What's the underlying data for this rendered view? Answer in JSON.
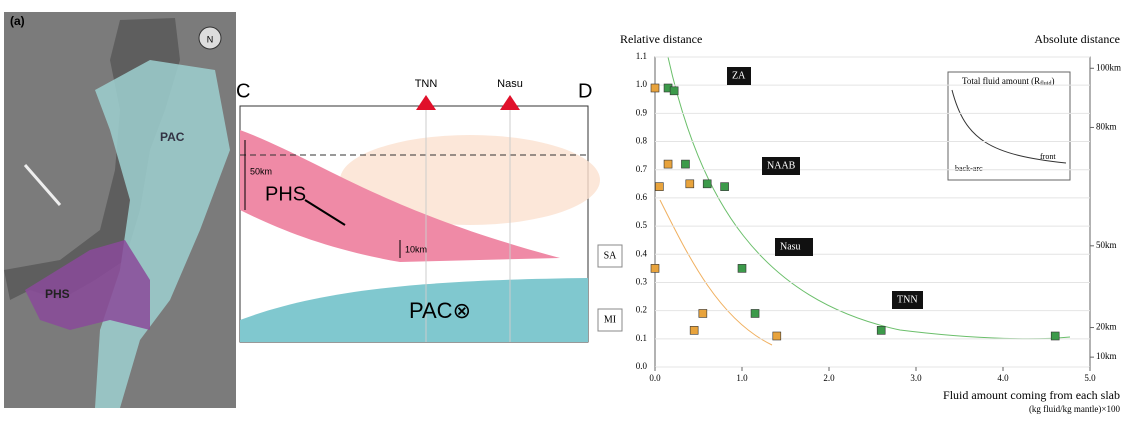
{
  "map": {
    "panel_label": "(a)",
    "north": "N",
    "pac": "PAC",
    "phs": "PHS"
  },
  "section": {
    "left": "C",
    "right": "D",
    "station1": "TNN",
    "station2": "Nasu",
    "phs": "PHS",
    "depth1": "50km",
    "depth2": "10km",
    "pac": "PAC⊗"
  },
  "chart_data": {
    "type": "scatter",
    "y_label": "Relative distance",
    "y2_label": "Absolute distance",
    "x_label": "Fluid amount coming from each slab",
    "x_unit": "(kg fluid/kg mantle)×100",
    "annotations": [
      "ZA",
      "NAAB",
      "Nasu",
      "TNN"
    ],
    "side_labels": [
      "SA",
      "MI"
    ],
    "inset": {
      "title": "Total fluid amount (R",
      "title_sub": "fluid",
      "title_end": ")",
      "front": "front",
      "back_arc": "back-arc"
    },
    "xlim": [
      0,
      5
    ],
    "ylim": [
      0,
      1.1
    ],
    "xticks": [
      {
        "value": 0,
        "label": "0.0"
      },
      {
        "value": 1,
        "label": "1.0"
      },
      {
        "value": 2,
        "label": "2.0"
      },
      {
        "value": 3,
        "label": "3.0"
      },
      {
        "value": 4,
        "label": "4.0"
      },
      {
        "value": 5,
        "label": "5.0"
      }
    ],
    "yticks": [
      {
        "value": 0,
        "label": "0.0"
      },
      0.1,
      0.2,
      0.3,
      0.4,
      0.5,
      0.6,
      0.7,
      0.8,
      0.9,
      {
        "value": 1,
        "label": "1.0"
      },
      1.1
    ],
    "y2ticks": [
      {
        "value": 1.06,
        "label": "100km"
      },
      {
        "value": 0.85,
        "label": "80km"
      },
      {
        "value": 0.43,
        "label": "50km"
      },
      {
        "value": 0.14,
        "label": "20km"
      },
      {
        "value": 0.035,
        "label": "10km"
      }
    ],
    "grid": true,
    "series": [
      {
        "color": "#e8a33c",
        "x": [
          0.0,
          0.15,
          0.05,
          0.4,
          0.0,
          0.55,
          0.45,
          1.4
        ],
        "values": [
          0.99,
          0.72,
          0.64,
          0.65,
          0.35,
          0.19,
          0.13,
          0.11
        ]
      },
      {
        "color": "#3c9a4a",
        "x": [
          0.15,
          0.22,
          0.35,
          0.6,
          0.8,
          1.0,
          1.15,
          2.6,
          4.6
        ],
        "values": [
          0.99,
          0.98,
          0.72,
          0.65,
          0.64,
          0.35,
          0.19,
          0.13,
          0.11
        ]
      }
    ]
  }
}
